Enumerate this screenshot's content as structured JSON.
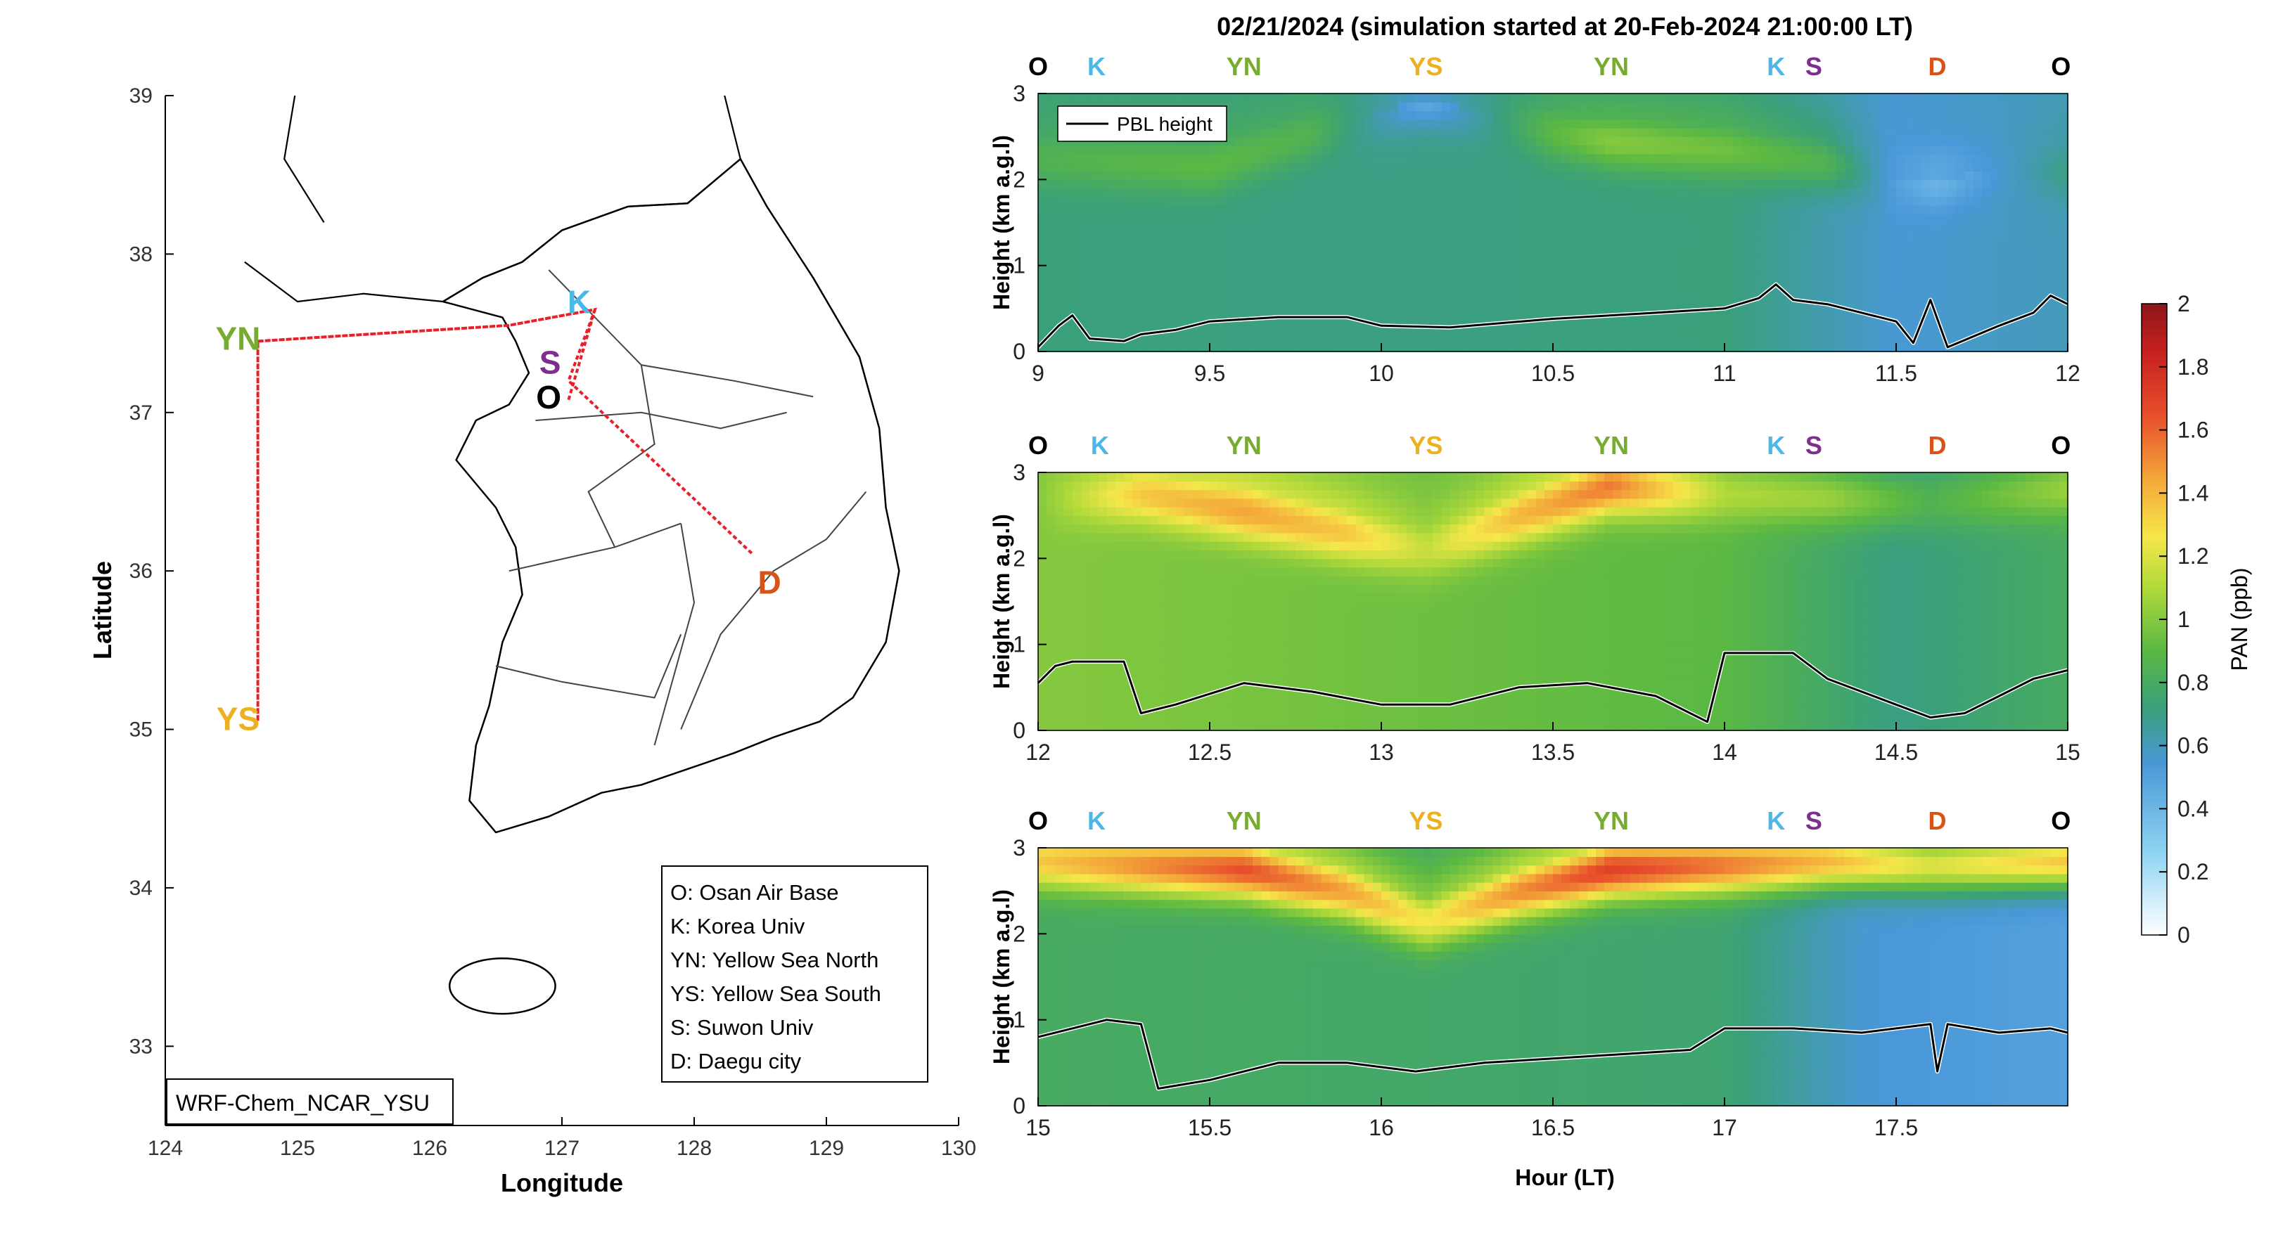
{
  "figure_title": "02/21/2024 (simulation started at 20-Feb-2024 21:00:00 LT)",
  "colors": {
    "O": "#000000",
    "K": "#4db8e8",
    "S": "#7e2f8e",
    "YN": "#77ac30",
    "YS": "#edb120",
    "D": "#d95319",
    "track": "#e8202a",
    "pbl": "#000000"
  },
  "map": {
    "xlabel": "Longitude",
    "ylabel": "Latitude",
    "xlim": [
      124,
      130
    ],
    "ylim": [
      32.5,
      39
    ],
    "xticks": [
      "124",
      "125",
      "126",
      "127",
      "128",
      "129",
      "130"
    ],
    "yticks": [
      "33",
      "34",
      "35",
      "36",
      "37",
      "38",
      "39"
    ],
    "model_label": "WRF-Chem_NCAR_YSU",
    "sites": [
      {
        "code": "K",
        "lon": 127.13,
        "lat": 37.68
      },
      {
        "code": "S",
        "lon": 126.91,
        "lat": 37.3
      },
      {
        "code": "O",
        "lon": 126.9,
        "lat": 37.08
      },
      {
        "code": "D",
        "lon": 128.57,
        "lat": 35.91
      },
      {
        "code": "YN",
        "lon": 124.55,
        "lat": 37.45
      },
      {
        "code": "YS",
        "lon": 124.55,
        "lat": 35.05
      }
    ],
    "track": [
      [
        127.05,
        37.08
      ],
      [
        127.25,
        37.65
      ],
      [
        126.6,
        37.55
      ],
      [
        124.7,
        37.45
      ],
      [
        124.7,
        35.05
      ],
      [
        124.7,
        37.45
      ],
      [
        126.6,
        37.55
      ],
      [
        127.25,
        37.65
      ],
      [
        127.05,
        37.2
      ],
      [
        128.45,
        36.1
      ]
    ],
    "legend": [
      "O: Osan Air Base",
      "K: Korea Univ",
      "YN: Yellow Sea North",
      "YS: Yellow Sea South",
      "S: Suwon Univ",
      "D: Daegu city"
    ]
  },
  "chart_data": {
    "type": "heatmap",
    "title": "02/21/2024 (simulation started at 20-Feb-2024 21:00:00 LT)",
    "xlabel": "Hour (LT)",
    "ylabel": "Height (km a.g.l)",
    "colorbar": {
      "label": "PAN (ppb)",
      "range": [
        0,
        2
      ],
      "ticks": [
        "0",
        "0.2",
        "0.4",
        "0.6",
        "0.8",
        "1",
        "1.2",
        "1.4",
        "1.6",
        "1.8",
        "2"
      ]
    },
    "legend": [
      "PBL height"
    ],
    "panels": [
      {
        "xlim": [
          9,
          12
        ],
        "ylim": [
          0,
          3
        ],
        "xticks": [
          "9",
          "9.5",
          "10",
          "10.5",
          "11",
          "11.5",
          "12"
        ],
        "yticks": [
          "0",
          "1",
          "2",
          "3"
        ],
        "site_labels": [
          {
            "code": "O",
            "x": 9.0
          },
          {
            "code": "K",
            "x": 9.17
          },
          {
            "code": "YN",
            "x": 9.6
          },
          {
            "code": "YS",
            "x": 10.13
          },
          {
            "code": "YN",
            "x": 10.67
          },
          {
            "code": "K",
            "x": 11.15
          },
          {
            "code": "S",
            "x": 11.26
          },
          {
            "code": "D",
            "x": 11.62
          },
          {
            "code": "O",
            "x": 11.98
          }
        ],
        "pbl": [
          [
            9.0,
            0.05
          ],
          [
            9.06,
            0.3
          ],
          [
            9.1,
            0.42
          ],
          [
            9.15,
            0.15
          ],
          [
            9.25,
            0.12
          ],
          [
            9.3,
            0.2
          ],
          [
            9.4,
            0.25
          ],
          [
            9.5,
            0.35
          ],
          [
            9.7,
            0.4
          ],
          [
            9.9,
            0.4
          ],
          [
            10.0,
            0.3
          ],
          [
            10.2,
            0.28
          ],
          [
            10.5,
            0.38
          ],
          [
            10.8,
            0.45
          ],
          [
            11.0,
            0.5
          ],
          [
            11.1,
            0.62
          ],
          [
            11.15,
            0.78
          ],
          [
            11.2,
            0.6
          ],
          [
            11.3,
            0.55
          ],
          [
            11.4,
            0.45
          ],
          [
            11.5,
            0.35
          ],
          [
            11.55,
            0.1
          ],
          [
            11.6,
            0.6
          ],
          [
            11.65,
            0.05
          ],
          [
            11.8,
            0.3
          ],
          [
            11.9,
            0.45
          ],
          [
            11.95,
            0.65
          ],
          [
            12.0,
            0.55
          ]
        ],
        "layer": [
          [
            9.0,
            2.25,
            0.85
          ],
          [
            9.5,
            2.15,
            0.9
          ],
          [
            9.8,
            2.55,
            0.85
          ],
          [
            10.13,
            2.95,
            0.45
          ],
          [
            10.5,
            2.55,
            0.9
          ],
          [
            10.67,
            2.45,
            1.0
          ],
          [
            11.0,
            2.35,
            0.95
          ],
          [
            11.3,
            2.2,
            0.85
          ],
          [
            11.5,
            2.0,
            0.5
          ],
          [
            11.62,
            2.0,
            0.4
          ],
          [
            11.8,
            2.1,
            0.55
          ],
          [
            12.0,
            2.1,
            0.7
          ]
        ],
        "baseline": [
          [
            9.0,
            0.72
          ],
          [
            10.0,
            0.7
          ],
          [
            11.0,
            0.72
          ],
          [
            11.5,
            0.55
          ],
          [
            12.0,
            0.6
          ]
        ]
      },
      {
        "xlim": [
          12,
          15
        ],
        "ylim": [
          0,
          3
        ],
        "xticks": [
          "12",
          "12.5",
          "13",
          "13.5",
          "14",
          "14.5",
          "15"
        ],
        "yticks": [
          "0",
          "1",
          "2",
          "3"
        ],
        "site_labels": [
          {
            "code": "O",
            "x": 12.0
          },
          {
            "code": "K",
            "x": 12.18
          },
          {
            "code": "YN",
            "x": 12.6
          },
          {
            "code": "YS",
            "x": 13.13
          },
          {
            "code": "YN",
            "x": 13.67
          },
          {
            "code": "K",
            "x": 14.15
          },
          {
            "code": "S",
            "x": 14.26
          },
          {
            "code": "D",
            "x": 14.62
          },
          {
            "code": "O",
            "x": 14.98
          }
        ],
        "pbl": [
          [
            12.0,
            0.55
          ],
          [
            12.05,
            0.75
          ],
          [
            12.1,
            0.8
          ],
          [
            12.25,
            0.8
          ],
          [
            12.3,
            0.2
          ],
          [
            12.4,
            0.3
          ],
          [
            12.6,
            0.55
          ],
          [
            12.8,
            0.45
          ],
          [
            13.0,
            0.3
          ],
          [
            13.2,
            0.3
          ],
          [
            13.4,
            0.5
          ],
          [
            13.6,
            0.55
          ],
          [
            13.8,
            0.4
          ],
          [
            13.95,
            0.1
          ],
          [
            14.0,
            0.9
          ],
          [
            14.2,
            0.9
          ],
          [
            14.3,
            0.6
          ],
          [
            14.5,
            0.3
          ],
          [
            14.6,
            0.15
          ],
          [
            14.7,
            0.2
          ],
          [
            14.8,
            0.4
          ],
          [
            14.9,
            0.6
          ],
          [
            15.0,
            0.7
          ]
        ],
        "layer": [
          [
            12.0,
            2.7,
            1.0
          ],
          [
            12.3,
            2.75,
            1.35
          ],
          [
            12.6,
            2.55,
            1.45
          ],
          [
            12.9,
            2.3,
            1.35
          ],
          [
            13.13,
            2.1,
            1.15
          ],
          [
            13.4,
            2.5,
            1.4
          ],
          [
            13.67,
            2.85,
            1.55
          ],
          [
            14.0,
            2.75,
            1.1
          ],
          [
            14.3,
            2.7,
            1.05
          ],
          [
            14.6,
            2.65,
            0.85
          ],
          [
            15.0,
            2.8,
            1.05
          ]
        ],
        "baseline": [
          [
            12.0,
            1.0
          ],
          [
            13.0,
            0.95
          ],
          [
            14.0,
            0.9
          ],
          [
            14.5,
            0.7
          ],
          [
            15.0,
            0.8
          ]
        ]
      },
      {
        "xlim": [
          15,
          18
        ],
        "ylim": [
          0,
          3
        ],
        "xticks": [
          "15",
          "15.5",
          "16",
          "16.5",
          "17",
          "17.5"
        ],
        "yticks": [
          "0",
          "1",
          "2",
          "3"
        ],
        "site_labels": [
          {
            "code": "O",
            "x": 15.0
          },
          {
            "code": "K",
            "x": 15.17
          },
          {
            "code": "YN",
            "x": 15.6
          },
          {
            "code": "YS",
            "x": 16.13
          },
          {
            "code": "YN",
            "x": 16.67
          },
          {
            "code": "K",
            "x": 17.15
          },
          {
            "code": "S",
            "x": 17.26
          },
          {
            "code": "D",
            "x": 17.62
          },
          {
            "code": "O",
            "x": 17.98
          }
        ],
        "pbl": [
          [
            15.0,
            0.8
          ],
          [
            15.1,
            0.9
          ],
          [
            15.2,
            1.0
          ],
          [
            15.3,
            0.95
          ],
          [
            15.35,
            0.2
          ],
          [
            15.5,
            0.3
          ],
          [
            15.7,
            0.5
          ],
          [
            15.9,
            0.5
          ],
          [
            16.1,
            0.4
          ],
          [
            16.3,
            0.5
          ],
          [
            16.5,
            0.55
          ],
          [
            16.7,
            0.6
          ],
          [
            16.9,
            0.65
          ],
          [
            17.0,
            0.9
          ],
          [
            17.2,
            0.9
          ],
          [
            17.4,
            0.85
          ],
          [
            17.6,
            0.95
          ],
          [
            17.62,
            0.4
          ],
          [
            17.65,
            0.95
          ],
          [
            17.8,
            0.85
          ],
          [
            17.95,
            0.9
          ],
          [
            18.0,
            0.85
          ]
        ],
        "layer": [
          [
            15.0,
            2.85,
            1.35
          ],
          [
            15.3,
            2.8,
            1.5
          ],
          [
            15.6,
            2.75,
            1.65
          ],
          [
            15.9,
            2.5,
            1.45
          ],
          [
            16.13,
            2.15,
            1.25
          ],
          [
            16.4,
            2.5,
            1.5
          ],
          [
            16.67,
            2.75,
            1.7
          ],
          [
            17.0,
            2.8,
            1.55
          ],
          [
            17.3,
            2.85,
            1.4
          ],
          [
            17.6,
            2.8,
            1.2
          ],
          [
            18.0,
            2.85,
            1.35
          ]
        ],
        "baseline": [
          [
            15.0,
            0.8
          ],
          [
            16.0,
            0.78
          ],
          [
            17.0,
            0.75
          ],
          [
            17.4,
            0.55
          ],
          [
            18.0,
            0.5
          ]
        ]
      }
    ]
  }
}
